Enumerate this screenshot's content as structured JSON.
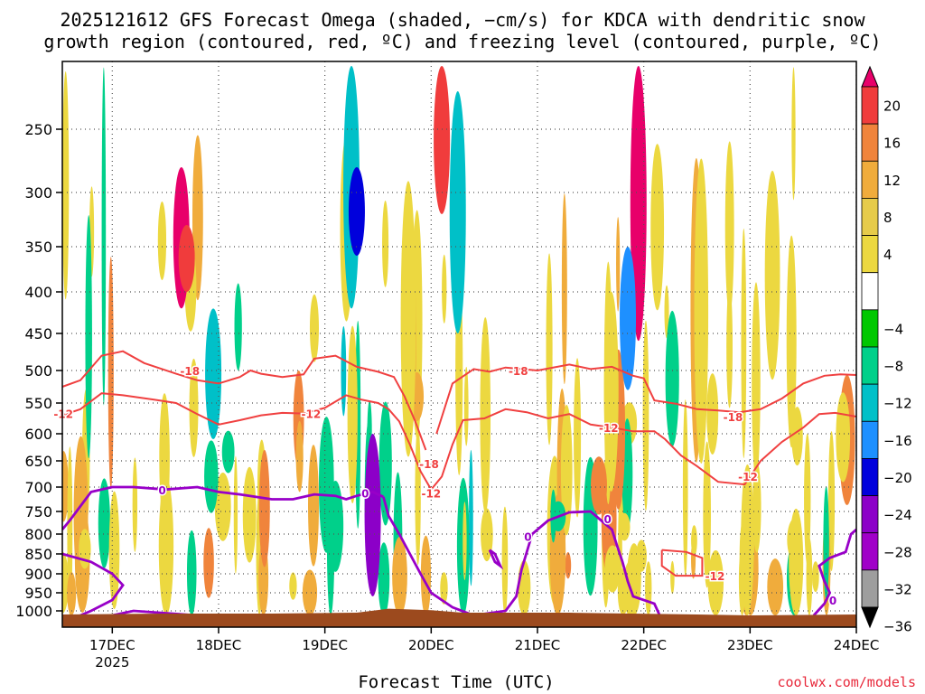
{
  "chart_data": {
    "type": "heatmap",
    "title_line1": "2025121612 GFS Forecast Omega (shaded, −cm/s) for KDCA with dendritic snow",
    "title_line2": "growth region (contoured, red, ºC) and freezing level (contoured, purple, ºC)",
    "xlabel": "Forecast Time (UTC)",
    "credit": "coolwx.com/models",
    "y_axis": {
      "label": "",
      "scale": "pressure (hPa), decreasing upward",
      "ticks": [
        "250",
        "300",
        "350",
        "400",
        "450",
        "500",
        "550",
        "600",
        "650",
        "700",
        "750",
        "800",
        "850",
        "900",
        "950",
        "1000"
      ],
      "tick_values": [
        250,
        300,
        350,
        400,
        450,
        500,
        550,
        600,
        650,
        700,
        750,
        800,
        850,
        900,
        950,
        1000
      ],
      "range": [
        200,
        1025
      ]
    },
    "x_axis": {
      "ticks": [
        "17DEC",
        "18DEC",
        "19DEC",
        "20DEC",
        "21DEC",
        "22DEC",
        "23DEC",
        "24DEC"
      ],
      "year_label": "2025",
      "range_days": [
        16.53,
        24.0
      ]
    },
    "colorbar": {
      "labels": [
        "20",
        "16",
        "12",
        "8",
        "4",
        "−4",
        "−8",
        "−12",
        "−16",
        "−20",
        "−24",
        "−28",
        "−32",
        "−36"
      ],
      "colors": [
        "#e8006a",
        "#f03c3c",
        "#f0843c",
        "#f0ac3c",
        "#e6cb4a",
        "#ecd840",
        "#ffffff",
        "#00c800",
        "#00d08a",
        "#00c0c8",
        "#1e90ff",
        "#0000dc",
        "#8c00c8",
        "#a000c8",
        "#9e9e9e",
        "#000000"
      ]
    },
    "colors": {
      "snow_growth_contour": "#f04040",
      "freezing_level_contour": "#9800c8",
      "terrain": "#9c4a1e",
      "credit": "#e8283a"
    },
    "contour_labels": {
      "red_minus18": [
        {
          "label": "-18",
          "day": 17.73,
          "p": 500
        },
        {
          "label": "-18",
          "day": 19.98,
          "p": 655
        },
        {
          "label": "-18",
          "day": 20.82,
          "p": 500
        },
        {
          "label": "-18",
          "day": 22.84,
          "p": 572
        }
      ],
      "red_minus12": [
        {
          "label": "-12",
          "day": 16.54,
          "p": 567
        },
        {
          "label": "-12",
          "day": 18.87,
          "p": 567
        },
        {
          "label": "-12",
          "day": 20.0,
          "p": 712
        },
        {
          "label": "-12",
          "day": 21.67,
          "p": 590
        },
        {
          "label": "-12",
          "day": 22.98,
          "p": 679
        },
        {
          "label": "-12",
          "day": 22.67,
          "p": 905
        }
      ],
      "purple_0": [
        {
          "label": "0",
          "day": 17.47,
          "p": 706
        },
        {
          "label": "0",
          "day": 19.38,
          "p": 712
        },
        {
          "label": "0",
          "day": 21.66,
          "p": 766
        },
        {
          "label": "0",
          "day": 20.91,
          "p": 806
        },
        {
          "label": "0",
          "day": 23.78,
          "p": 970
        }
      ]
    },
    "contours": {
      "red_minus18_left": [
        [
          16.53,
          525
        ],
        [
          16.7,
          515
        ],
        [
          16.9,
          480
        ],
        [
          17.1,
          474
        ],
        [
          17.3,
          490
        ],
        [
          17.6,
          505
        ],
        [
          17.8,
          515
        ],
        [
          18.0,
          520
        ],
        [
          18.2,
          510
        ],
        [
          18.3,
          500
        ],
        [
          18.4,
          505
        ],
        [
          18.6,
          510
        ],
        [
          18.8,
          506
        ],
        [
          18.9,
          484
        ],
        [
          19.1,
          480
        ],
        [
          19.3,
          495
        ],
        [
          19.5,
          502
        ],
        [
          19.65,
          510
        ],
        [
          19.75,
          540
        ],
        [
          19.85,
          580
        ],
        [
          19.95,
          630
        ]
      ],
      "red_minus18_right": [
        [
          20.05,
          600
        ],
        [
          20.2,
          520
        ],
        [
          20.4,
          498
        ],
        [
          20.55,
          502
        ],
        [
          20.7,
          496
        ],
        [
          21.0,
          500
        ],
        [
          21.3,
          492
        ],
        [
          21.5,
          498
        ],
        [
          21.7,
          495
        ],
        [
          21.9,
          508
        ],
        [
          22.0,
          512
        ],
        [
          22.1,
          546
        ],
        [
          22.3,
          551
        ],
        [
          22.5,
          560
        ],
        [
          22.7,
          562
        ],
        [
          22.9,
          565
        ],
        [
          23.1,
          560
        ],
        [
          23.3,
          543
        ],
        [
          23.5,
          520
        ],
        [
          23.7,
          508
        ],
        [
          23.85,
          506
        ],
        [
          24.0,
          507
        ]
      ],
      "red_minus12_left": [
        [
          16.53,
          570
        ],
        [
          16.7,
          560
        ],
        [
          16.9,
          535
        ],
        [
          17.1,
          538
        ],
        [
          17.4,
          545
        ],
        [
          17.6,
          550
        ],
        [
          17.8,
          568
        ],
        [
          18.0,
          585
        ],
        [
          18.2,
          578
        ],
        [
          18.4,
          570
        ],
        [
          18.6,
          566
        ],
        [
          18.8,
          567
        ],
        [
          19.0,
          558
        ],
        [
          19.2,
          538
        ],
        [
          19.35,
          545
        ],
        [
          19.5,
          550
        ],
        [
          19.6,
          560
        ],
        [
          19.7,
          580
        ],
        [
          19.8,
          620
        ],
        [
          19.9,
          670
        ],
        [
          20.0,
          705
        ]
      ],
      "red_minus12_right": [
        [
          20.0,
          705
        ],
        [
          20.1,
          680
        ],
        [
          20.2,
          620
        ],
        [
          20.3,
          578
        ],
        [
          20.5,
          575
        ],
        [
          20.7,
          560
        ],
        [
          20.9,
          565
        ],
        [
          21.1,
          575
        ],
        [
          21.3,
          568
        ],
        [
          21.5,
          585
        ],
        [
          21.7,
          590
        ],
        [
          21.9,
          596
        ],
        [
          22.1,
          596
        ],
        [
          22.2,
          610
        ],
        [
          22.35,
          640
        ],
        [
          22.5,
          660
        ],
        [
          22.7,
          690
        ],
        [
          22.95,
          695
        ],
        [
          23.1,
          650
        ],
        [
          23.3,
          615
        ],
        [
          23.5,
          590
        ],
        [
          23.65,
          568
        ],
        [
          23.8,
          566
        ],
        [
          24.0,
          572
        ]
      ],
      "red_minus12_lower": [
        [
          22.17,
          840
        ],
        [
          22.17,
          880
        ],
        [
          22.3,
          905
        ],
        [
          22.55,
          905
        ],
        [
          22.55,
          860
        ],
        [
          22.4,
          845
        ],
        [
          22.17,
          840
        ]
      ],
      "purple_0_left": [
        [
          16.53,
          790
        ],
        [
          16.6,
          770
        ],
        [
          16.8,
          710
        ],
        [
          17.0,
          700
        ],
        [
          17.2,
          700
        ],
        [
          17.5,
          705
        ],
        [
          17.8,
          700
        ],
        [
          18.0,
          710
        ],
        [
          18.2,
          715
        ],
        [
          18.5,
          725
        ],
        [
          18.7,
          725
        ],
        [
          18.9,
          715
        ],
        [
          19.1,
          718
        ],
        [
          19.2,
          725
        ],
        [
          19.3,
          718
        ],
        [
          19.45,
          710
        ],
        [
          19.55,
          720
        ]
      ],
      "purple_0_mid": [
        [
          19.55,
          720
        ],
        [
          19.6,
          760
        ],
        [
          19.7,
          800
        ],
        [
          19.8,
          850
        ],
        [
          19.9,
          900
        ],
        [
          20.0,
          950
        ],
        [
          20.2,
          990
        ],
        [
          20.4,
          1010
        ],
        [
          20.7,
          1000
        ],
        [
          20.8,
          960
        ],
        [
          20.85,
          890
        ],
        [
          20.95,
          800
        ],
        [
          21.1,
          770
        ],
        [
          21.3,
          752
        ],
        [
          21.5,
          750
        ],
        [
          21.6,
          770
        ],
        [
          21.7,
          790
        ],
        [
          21.75,
          830
        ],
        [
          21.8,
          870
        ],
        [
          21.85,
          920
        ],
        [
          21.9,
          960
        ],
        [
          22.1,
          980
        ],
        [
          22.15,
          1010
        ]
      ],
      "purple_0_bottom": [
        [
          16.53,
          850
        ],
        [
          16.8,
          870
        ],
        [
          17.0,
          900
        ],
        [
          17.1,
          930
        ],
        [
          17.0,
          970
        ],
        [
          16.8,
          1000
        ],
        [
          16.7,
          1010
        ]
      ],
      "purple_0_bottom2": [
        [
          17.0,
          1010
        ],
        [
          17.2,
          1000
        ],
        [
          17.5,
          1005
        ],
        [
          17.8,
          1010
        ]
      ],
      "purple_0_right": [
        [
          23.6,
          1010
        ],
        [
          23.7,
          980
        ],
        [
          23.75,
          950
        ],
        [
          23.7,
          920
        ],
        [
          23.65,
          880
        ],
        [
          23.75,
          860
        ],
        [
          23.9,
          845
        ],
        [
          23.95,
          800
        ],
        [
          24.0,
          790
        ]
      ],
      "purple_0_small": [
        [
          20.55,
          840
        ],
        [
          20.6,
          850
        ],
        [
          20.65,
          880
        ],
        [
          20.6,
          870
        ],
        [
          20.55,
          840
        ]
      ]
    },
    "shading_blobs": [
      {
        "day": 17.65,
        "p1": 280,
        "p2": 420,
        "v": 20
      },
      {
        "day": 17.7,
        "p1": 330,
        "p2": 400,
        "v": 16
      },
      {
        "day": 17.95,
        "p1": 420,
        "p2": 610,
        "v": -12
      },
      {
        "day": 19.25,
        "p1": 200,
        "p2": 420,
        "v": -12
      },
      {
        "day": 19.3,
        "p1": 280,
        "p2": 360,
        "v": -20
      },
      {
        "day": 19.45,
        "p1": 600,
        "p2": 960,
        "v": -24
      },
      {
        "day": 20.1,
        "p1": 200,
        "p2": 320,
        "v": 16
      },
      {
        "day": 20.25,
        "p1": 220,
        "p2": 450,
        "v": -12
      },
      {
        "day": 21.95,
        "p1": 200,
        "p2": 460,
        "v": 20
      },
      {
        "day": 21.85,
        "p1": 350,
        "p2": 530,
        "v": -16
      }
    ]
  }
}
